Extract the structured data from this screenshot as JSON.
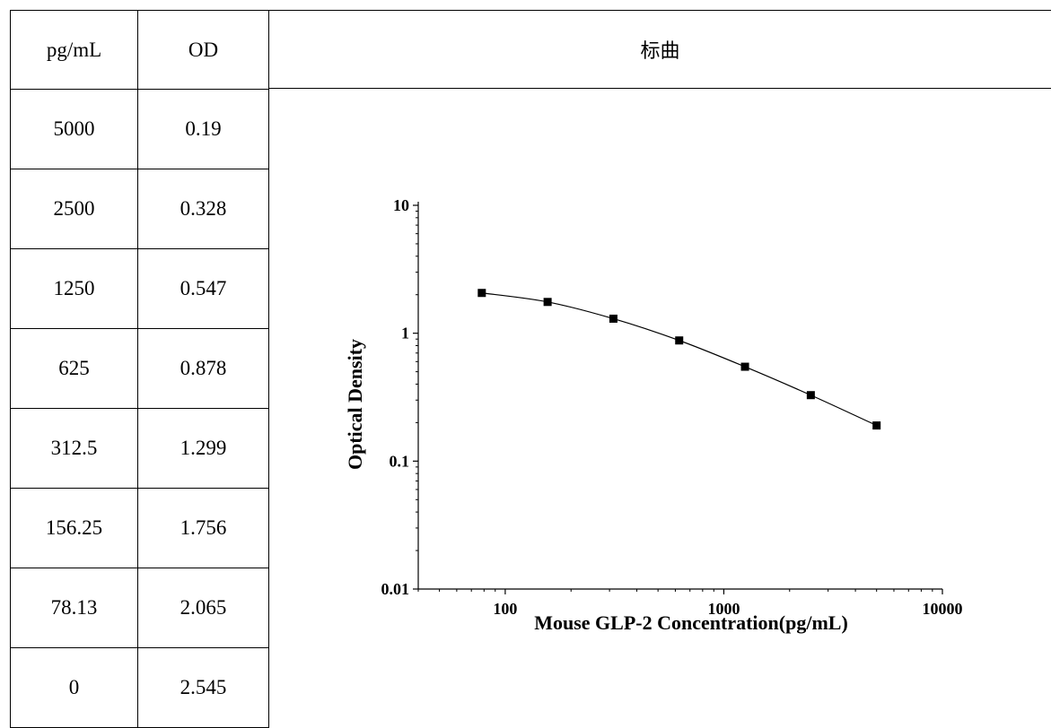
{
  "table": {
    "headers": [
      "pg/mL",
      "OD"
    ],
    "rows": [
      [
        "5000",
        "0.19"
      ],
      [
        "2500",
        "0.328"
      ],
      [
        "1250",
        "0.547"
      ],
      [
        "625",
        "0.878"
      ],
      [
        "312.5",
        "1.299"
      ],
      [
        "156.25",
        "1.756"
      ],
      [
        "78.13",
        "2.065"
      ],
      [
        "0",
        "2.545"
      ]
    ]
  },
  "chart_title": "标曲",
  "chart_data": {
    "type": "scatter",
    "title": "标曲",
    "xlabel": "Mouse GLP-2 Concentration(pg/mL)",
    "ylabel": "Optical Density",
    "xscale": "log",
    "yscale": "log",
    "xlim": [
      40,
      10000
    ],
    "ylim": [
      0.01,
      10
    ],
    "xticks": [
      "100",
      "1000",
      "10000"
    ],
    "yticks": [
      "0.01",
      "0.1",
      "1",
      "10"
    ],
    "series": [
      {
        "x": [
          78.13,
          156.25,
          312.5,
          625,
          1250,
          2500,
          5000
        ],
        "y": [
          2.065,
          1.756,
          1.299,
          0.878,
          0.547,
          0.328,
          0.19
        ],
        "marker": "square",
        "line": "smooth",
        "color": "#000000"
      }
    ]
  }
}
